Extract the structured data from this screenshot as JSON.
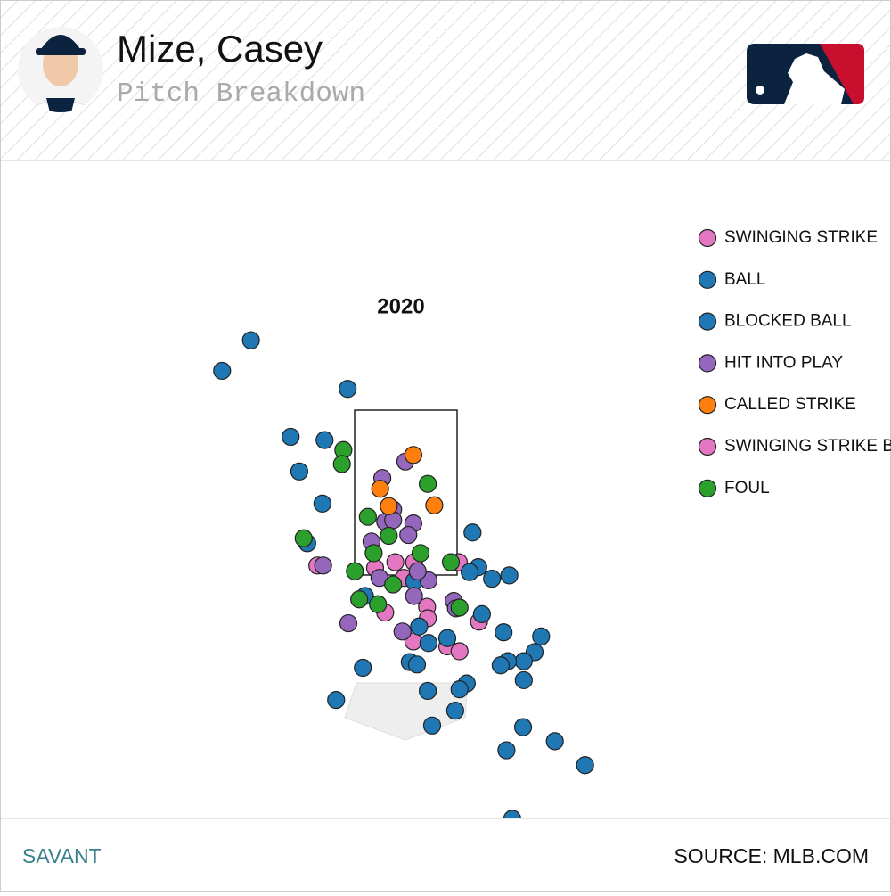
{
  "header": {
    "title": "Mize, Casey",
    "subtitle": "Pitch Breakdown"
  },
  "chart_data": {
    "type": "scatter",
    "title": "2020",
    "xlim": [
      -3,
      3
    ],
    "ylim": [
      -1.5,
      6
    ],
    "series": [
      {
        "name": "SWINGING STRIKE",
        "color": "#e377c2",
        "x": [
          -1.22,
          -0.42,
          -0.14,
          0.12,
          0.74,
          -0.02,
          0.3,
          0.31,
          -0.28,
          1.02,
          0.11,
          0.58
        ],
        "values": [
          1.62,
          1.59,
          1.66,
          1.66,
          1.66,
          1.47,
          1.12,
          0.98,
          1.05,
          0.94,
          0.7,
          0.64
        ]
      },
      {
        "name": "BALL",
        "color": "#1f77b4",
        "x": [
          -2.14,
          -2.54,
          -0.8,
          -1.59,
          -1.12,
          -1.47,
          -1.15,
          -1.36,
          0.93,
          1.01,
          0.89,
          1.44,
          1.2,
          0.12,
          1.06,
          1.36,
          1.88,
          1.79,
          1.64,
          1.42,
          1.32,
          0.19,
          0.32,
          0.58,
          0.06,
          0.16,
          -0.59,
          -0.56,
          -0.96,
          0.31,
          0.85,
          0.75,
          1.64,
          0.69,
          0.37,
          1.63,
          1.4,
          2.07,
          2.49,
          1.48
        ],
        "values": [
          4.35,
          3.98,
          3.76,
          3.18,
          3.14,
          2.76,
          2.37,
          1.89,
          2.02,
          1.6,
          1.54,
          1.5,
          1.46,
          1.43,
          1.03,
          0.81,
          0.76,
          0.57,
          0.46,
          0.46,
          0.41,
          0.88,
          0.68,
          0.74,
          0.45,
          0.42,
          0.38,
          1.25,
          -0.01,
          0.1,
          0.19,
          0.12,
          0.23,
          -0.14,
          -0.32,
          -0.34,
          -0.62,
          -0.51,
          -0.8,
          -1.45
        ]
      },
      {
        "name": "BLOCKED BALL",
        "color": "#1f77b4",
        "x": [],
        "values": []
      },
      {
        "name": "HIT INTO PLAY",
        "color": "#9467bd",
        "x": [
          0,
          -0.32,
          -0.17,
          -0.28,
          -0.17,
          0.11,
          0.04,
          -0.47,
          -1.14,
          0.32,
          0.12,
          0.67,
          0.7,
          -0.79,
          -0.04,
          -0.36,
          0.17
        ],
        "values": [
          2.88,
          2.68,
          2.3,
          2.15,
          2.17,
          2.13,
          1.99,
          1.91,
          1.62,
          1.44,
          1.25,
          1.19,
          1.1,
          0.92,
          0.82,
          1.47,
          1.55
        ]
      },
      {
        "name": "CALLED STRIKE",
        "color": "#ff7f0e",
        "x": [
          0.11,
          -0.35,
          -0.23,
          0.4
        ],
        "values": [
          2.96,
          2.55,
          2.34,
          2.35
        ]
      },
      {
        "name": "SWINGING STRIKE BLOCKED",
        "color": "#e377c2",
        "x": [
          0.75
        ],
        "values": [
          0.58
        ]
      },
      {
        "name": "FOUL",
        "color": "#2ca02c",
        "x": [
          -0.86,
          -0.88,
          0.31,
          -0.52,
          -0.23,
          -1.41,
          -0.44,
          0.21,
          0.63,
          -0.7,
          -0.17,
          -0.64,
          -0.38,
          0.75
        ],
        "values": [
          3.02,
          2.85,
          2.61,
          2.21,
          1.98,
          1.95,
          1.77,
          1.77,
          1.66,
          1.55,
          1.39,
          1.21,
          1.15,
          1.11
        ]
      }
    ]
  },
  "footer": {
    "left": "SAVANT",
    "right": "SOURCE: MLB.COM"
  }
}
